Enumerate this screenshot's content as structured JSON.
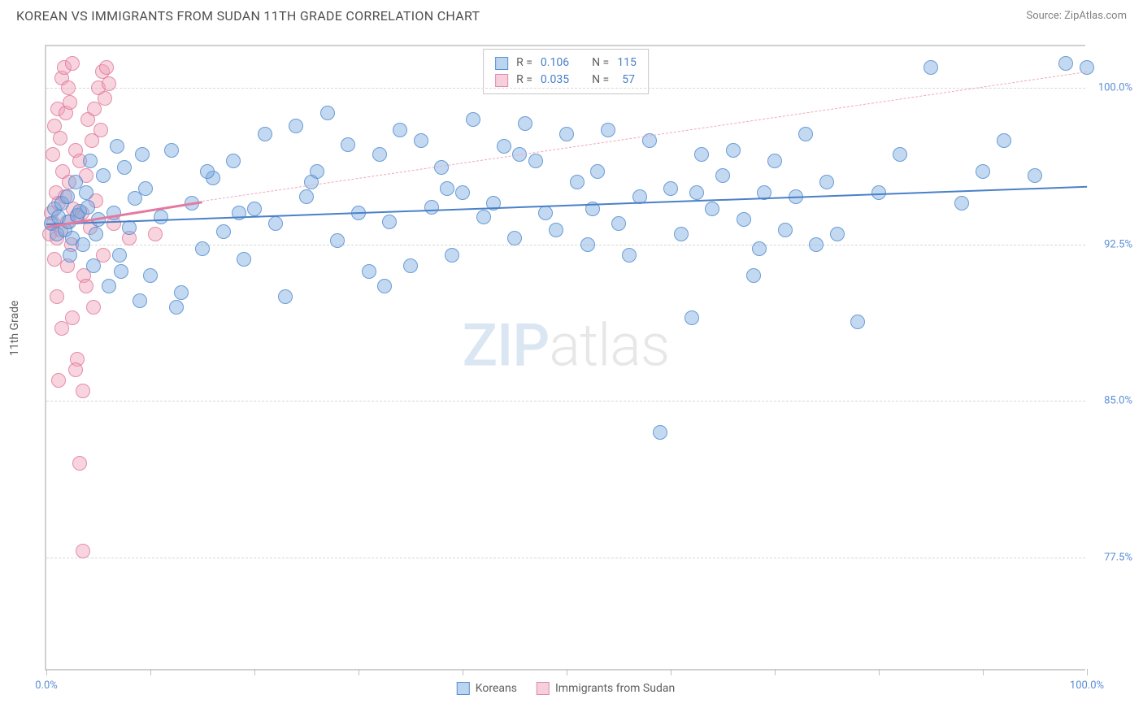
{
  "title": "KOREAN VS IMMIGRANTS FROM SUDAN 11TH GRADE CORRELATION CHART",
  "source": "Source: ZipAtlas.com",
  "y_axis_label": "11th Grade",
  "watermark": {
    "part1": "ZIP",
    "part2": "atlas"
  },
  "chart": {
    "type": "scatter",
    "xlim": [
      0,
      100
    ],
    "ylim": [
      72,
      102
    ],
    "x_ticks": [
      0,
      10,
      20,
      30,
      40,
      50,
      60,
      70,
      80,
      90,
      100
    ],
    "x_tick_labels": {
      "0": "0.0%",
      "100": "100.0%"
    },
    "y_gridlines": [
      77.5,
      85.0,
      92.5,
      100.0
    ],
    "y_tick_labels": [
      "77.5%",
      "85.0%",
      "92.5%",
      "100.0%"
    ],
    "background_color": "#ffffff",
    "grid_color": "#d8d8d8",
    "point_radius": 9,
    "colors": {
      "blue_fill": "rgba(120,170,225,0.45)",
      "blue_stroke": "rgba(70,130,200,0.7)",
      "pink_fill": "rgba(240,160,185,0.45)",
      "pink_stroke": "rgba(220,110,150,0.7)",
      "trend_blue": "#4a80c8",
      "trend_pink": "#e57aa0"
    }
  },
  "stats_legend": {
    "rows": [
      {
        "color": "blue",
        "r_label": "R = ",
        "r_value": "0.106",
        "n_label": "N = ",
        "n_value": "115"
      },
      {
        "color": "pink",
        "r_label": "R = ",
        "r_value": "0.035",
        "n_label": "N = ",
        "n_value": "57"
      }
    ]
  },
  "bottom_legend": {
    "items": [
      {
        "color": "blue",
        "label": "Koreans"
      },
      {
        "color": "pink",
        "label": "Immigrants from Sudan"
      }
    ]
  },
  "trend_lines": {
    "blue": {
      "x1": 0,
      "y1": 93.5,
      "x2": 100,
      "y2": 95.3
    },
    "pink_solid": {
      "x1": 0,
      "y1": 93.4,
      "x2": 15,
      "y2": 94.6
    },
    "pink_dashed": {
      "x1": 15,
      "y1": 94.6,
      "x2": 100,
      "y2": 100.8
    }
  },
  "series": {
    "blue": [
      [
        0.5,
        93.5
      ],
      [
        0.8,
        94.2
      ],
      [
        1.0,
        93.0
      ],
      [
        1.2,
        93.8
      ],
      [
        1.5,
        94.5
      ],
      [
        1.8,
        93.2
      ],
      [
        2.0,
        94.8
      ],
      [
        2.2,
        93.6
      ],
      [
        2.5,
        92.8
      ],
      [
        2.8,
        95.5
      ],
      [
        3.0,
        93.9
      ],
      [
        3.2,
        94.1
      ],
      [
        3.5,
        92.5
      ],
      [
        3.8,
        95.0
      ],
      [
        4.0,
        94.3
      ],
      [
        4.5,
        91.5
      ],
      [
        5.0,
        93.7
      ],
      [
        5.5,
        95.8
      ],
      [
        6.0,
        90.5
      ],
      [
        6.5,
        94.0
      ],
      [
        7.0,
        92.0
      ],
      [
        7.5,
        96.2
      ],
      [
        8.0,
        93.3
      ],
      [
        8.5,
        94.7
      ],
      [
        9.0,
        89.8
      ],
      [
        9.5,
        95.2
      ],
      [
        10.0,
        91.0
      ],
      [
        11.0,
        93.8
      ],
      [
        12.0,
        97.0
      ],
      [
        13.0,
        90.2
      ],
      [
        14.0,
        94.5
      ],
      [
        15.0,
        92.3
      ],
      [
        16.0,
        95.7
      ],
      [
        17.0,
        93.1
      ],
      [
        18.0,
        96.5
      ],
      [
        19.0,
        91.8
      ],
      [
        20.0,
        94.2
      ],
      [
        21.0,
        97.8
      ],
      [
        22.0,
        93.5
      ],
      [
        23.0,
        90.0
      ],
      [
        24.0,
        98.2
      ],
      [
        25.0,
        94.8
      ],
      [
        26.0,
        96.0
      ],
      [
        27.0,
        98.8
      ],
      [
        28.0,
        92.7
      ],
      [
        29.0,
        97.3
      ],
      [
        30.0,
        94.0
      ],
      [
        31.0,
        91.2
      ],
      [
        32.0,
        96.8
      ],
      [
        33.0,
        93.6
      ],
      [
        34.0,
        98.0
      ],
      [
        35.0,
        91.5
      ],
      [
        36.0,
        97.5
      ],
      [
        37.0,
        94.3
      ],
      [
        38.0,
        96.2
      ],
      [
        39.0,
        92.0
      ],
      [
        40.0,
        95.0
      ],
      [
        41.0,
        98.5
      ],
      [
        42.0,
        93.8
      ],
      [
        43.0,
        94.5
      ],
      [
        44.0,
        97.2
      ],
      [
        45.0,
        92.8
      ],
      [
        46.0,
        98.3
      ],
      [
        47.0,
        96.5
      ],
      [
        48.0,
        94.0
      ],
      [
        49.0,
        93.2
      ],
      [
        50.0,
        97.8
      ],
      [
        51.0,
        95.5
      ],
      [
        52.0,
        92.5
      ],
      [
        53.0,
        96.0
      ],
      [
        54.0,
        98.0
      ],
      [
        55.0,
        93.5
      ],
      [
        56.0,
        92.0
      ],
      [
        57.0,
        94.8
      ],
      [
        58.0,
        97.5
      ],
      [
        59.0,
        83.5
      ],
      [
        60.0,
        95.2
      ],
      [
        61.0,
        93.0
      ],
      [
        62.0,
        89.0
      ],
      [
        63.0,
        96.8
      ],
      [
        64.0,
        94.2
      ],
      [
        65.0,
        95.8
      ],
      [
        66.0,
        97.0
      ],
      [
        67.0,
        93.7
      ],
      [
        68.0,
        91.0
      ],
      [
        69.0,
        95.0
      ],
      [
        70.0,
        96.5
      ],
      [
        71.0,
        93.2
      ],
      [
        72.0,
        94.8
      ],
      [
        73.0,
        97.8
      ],
      [
        74.0,
        92.5
      ],
      [
        75.0,
        95.5
      ],
      [
        76.0,
        93.0
      ],
      [
        78.0,
        88.8
      ],
      [
        80.0,
        95.0
      ],
      [
        82.0,
        96.8
      ],
      [
        85.0,
        101.0
      ],
      [
        88.0,
        94.5
      ],
      [
        90.0,
        96.0
      ],
      [
        92.0,
        97.5
      ],
      [
        95.0,
        95.8
      ],
      [
        98.0,
        101.2
      ],
      [
        100.0,
        101.0
      ],
      [
        4.2,
        96.5
      ],
      [
        6.8,
        97.2
      ],
      [
        9.2,
        96.8
      ],
      [
        12.5,
        89.5
      ],
      [
        15.5,
        96.0
      ],
      [
        18.5,
        94.0
      ],
      [
        25.5,
        95.5
      ],
      [
        32.5,
        90.5
      ],
      [
        38.5,
        95.2
      ],
      [
        45.5,
        96.8
      ],
      [
        52.5,
        94.2
      ],
      [
        62.5,
        95.0
      ],
      [
        68.5,
        92.3
      ],
      [
        2.3,
        92.0
      ],
      [
        4.8,
        93.0
      ],
      [
        7.2,
        91.2
      ]
    ],
    "pink": [
      [
        0.3,
        93.0
      ],
      [
        0.5,
        94.0
      ],
      [
        0.7,
        93.5
      ],
      [
        0.9,
        95.0
      ],
      [
        1.0,
        92.8
      ],
      [
        1.2,
        94.5
      ],
      [
        1.4,
        93.2
      ],
      [
        1.6,
        96.0
      ],
      [
        1.8,
        94.8
      ],
      [
        2.0,
        93.6
      ],
      [
        2.2,
        95.5
      ],
      [
        2.4,
        92.5
      ],
      [
        2.6,
        94.2
      ],
      [
        2.8,
        97.0
      ],
      [
        3.0,
        93.8
      ],
      [
        3.2,
        96.5
      ],
      [
        3.4,
        94.0
      ],
      [
        3.6,
        91.0
      ],
      [
        3.8,
        95.8
      ],
      [
        4.0,
        98.5
      ],
      [
        4.2,
        93.3
      ],
      [
        4.4,
        97.5
      ],
      [
        4.6,
        99.0
      ],
      [
        4.8,
        94.6
      ],
      [
        5.0,
        100.0
      ],
      [
        5.2,
        98.0
      ],
      [
        5.4,
        100.8
      ],
      [
        5.6,
        99.5
      ],
      [
        5.8,
        101.0
      ],
      [
        6.0,
        100.2
      ],
      [
        0.6,
        96.8
      ],
      [
        0.8,
        98.2
      ],
      [
        1.1,
        99.0
      ],
      [
        1.3,
        97.6
      ],
      [
        1.5,
        100.5
      ],
      [
        1.7,
        101.0
      ],
      [
        1.9,
        98.8
      ],
      [
        2.1,
        100.0
      ],
      [
        2.3,
        99.3
      ],
      [
        2.5,
        101.2
      ],
      [
        1.0,
        90.0
      ],
      [
        1.5,
        88.5
      ],
      [
        2.0,
        91.5
      ],
      [
        2.5,
        89.0
      ],
      [
        3.0,
        87.0
      ],
      [
        3.5,
        85.5
      ],
      [
        1.2,
        86.0
      ],
      [
        2.8,
        86.5
      ],
      [
        4.5,
        89.5
      ],
      [
        0.8,
        91.8
      ],
      [
        3.8,
        90.5
      ],
      [
        5.5,
        92.0
      ],
      [
        6.5,
        93.5
      ],
      [
        8.0,
        92.8
      ],
      [
        10.5,
        93.0
      ],
      [
        3.2,
        82.0
      ],
      [
        3.5,
        77.8
      ]
    ]
  }
}
